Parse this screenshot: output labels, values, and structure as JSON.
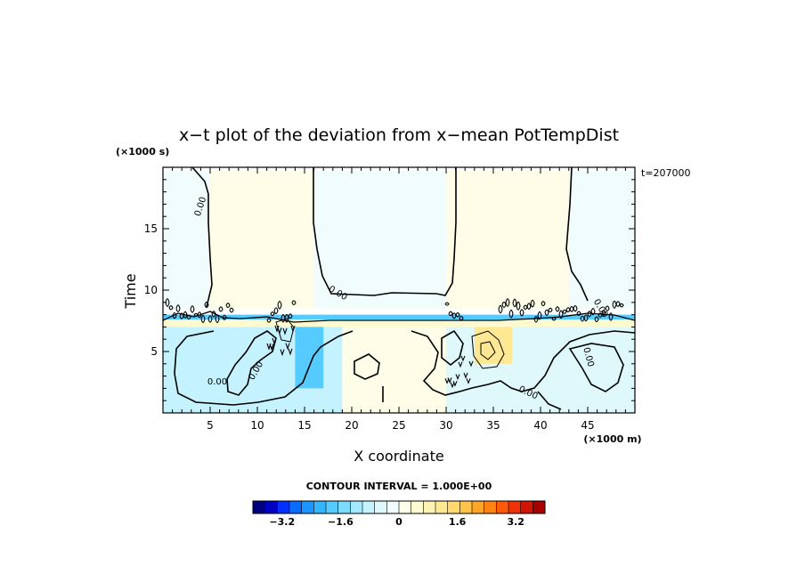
{
  "chart_data": {
    "type": "heatmap",
    "title": "x−t plot of the deviation from x−mean PotTempDist",
    "ylabel": "Time",
    "xlabel": "X coordinate",
    "y_unit": "(×1000 s)",
    "x_unit": "(×1000 m)",
    "time_stamp": "t=207000",
    "xlim": [
      0,
      50
    ],
    "ylim": [
      0,
      20
    ],
    "x_ticks": [
      5,
      10,
      15,
      20,
      25,
      30,
      35,
      40,
      45
    ],
    "y_ticks": [
      5,
      10,
      15
    ],
    "contour_interval_label": "CONTOUR INTERVAL = 1.000E+00",
    "contour_labels": [
      "0.00",
      "0.00",
      "0.00",
      "0.00",
      "0.00",
      "0.00",
      "0.00"
    ],
    "colorbar": {
      "min": -4.0,
      "max": 4.0,
      "tick_labels": [
        "−3.2",
        "−1.6",
        "0",
        "1.6",
        "3.2"
      ],
      "tick_values": [
        -3.2,
        -1.6,
        0,
        1.6,
        3.2
      ],
      "colors": [
        "#00007f",
        "#0000c4",
        "#0030ff",
        "#0a6cff",
        "#1e96ff",
        "#35b4ff",
        "#55cbff",
        "#7bdcff",
        "#a3e9ff",
        "#c4f2ff",
        "#def8fb",
        "#f1fcfc",
        "#fdfde8",
        "#fffad0",
        "#fff3b3",
        "#ffe894",
        "#ffd86e",
        "#ffc34a",
        "#ffa62a",
        "#ff8414",
        "#ff5a0a",
        "#f0320a",
        "#d01406",
        "#a80000"
      ]
    },
    "regions": [
      {
        "name": "upper-warm-anomaly",
        "value": 0.25,
        "x": [
          3,
          45
        ],
        "y": [
          8.5,
          19.7
        ]
      },
      {
        "name": "upper-cool-left",
        "value": -0.25,
        "x": [
          0,
          5
        ],
        "y": [
          8.5,
          19.7
        ]
      },
      {
        "name": "upper-cool-middle",
        "value": -0.25,
        "x": [
          16,
          30
        ],
        "y": [
          8.5,
          19.7
        ]
      },
      {
        "name": "upper-cool-right",
        "value": -0.25,
        "x": [
          43,
          50
        ],
        "y": [
          8.5,
          19.7
        ]
      },
      {
        "name": "transition-warm-band",
        "value": 0.6,
        "x": [
          0,
          50
        ],
        "y": [
          6.8,
          7.8
        ]
      },
      {
        "name": "transition-cool-line",
        "value": -2.0,
        "x": [
          0,
          50
        ],
        "y": [
          7.6,
          8.0
        ]
      },
      {
        "name": "lower-cool-left",
        "value": -0.7,
        "x": [
          0,
          19
        ],
        "y": [
          0,
          7
        ]
      },
      {
        "name": "lower-cool-plume",
        "value": -1.8,
        "x": [
          14,
          17
        ],
        "y": [
          2,
          7
        ]
      },
      {
        "name": "lower-warm-center",
        "value": 0.3,
        "x": [
          19,
          30
        ],
        "y": [
          0,
          7
        ]
      },
      {
        "name": "lower-cool-right",
        "value": -0.6,
        "x": [
          30,
          50
        ],
        "y": [
          0,
          7
        ]
      },
      {
        "name": "lower-warm-right-spot",
        "value": 1.0,
        "x": [
          33,
          37
        ],
        "y": [
          4,
          7
        ]
      }
    ]
  }
}
